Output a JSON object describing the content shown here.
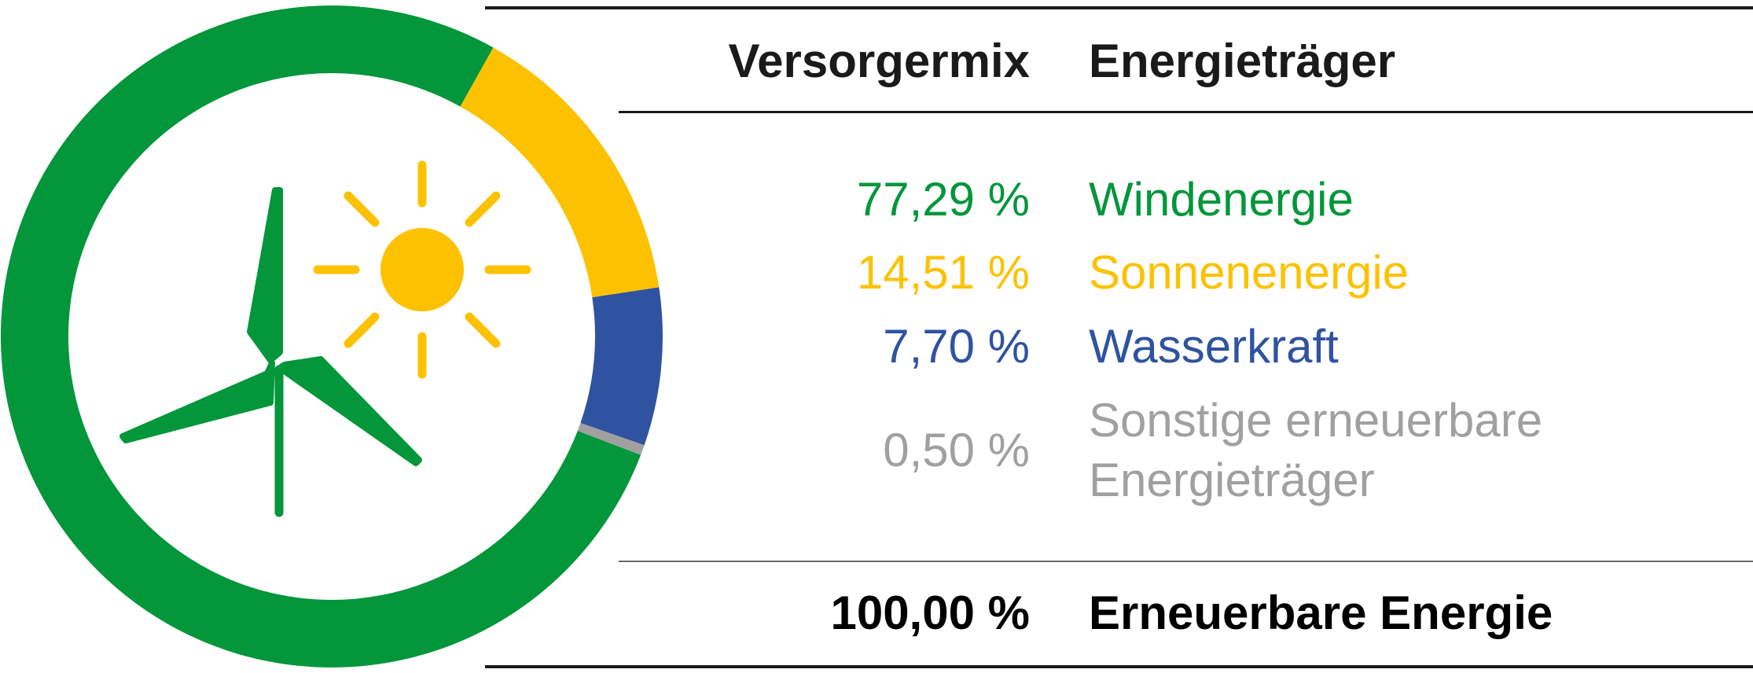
{
  "table": {
    "col_percent_header": "Versorgermix",
    "col_source_header": "Energieträger",
    "total_percent": "100,00 %",
    "total_label": "Erneuerbare Energie"
  },
  "chart_data": {
    "type": "pie",
    "variant": "donut",
    "series": [
      {
        "name": "Windenergie",
        "value": 77.29,
        "display": "77,29 %",
        "color": "#03963b"
      },
      {
        "name": "Sonnenenergie",
        "value": 14.51,
        "display": "14,51 %",
        "color": "#fcc200"
      },
      {
        "name": "Wasserkraft",
        "value": 7.7,
        "display": "7,70 %",
        "color": "#2f53a0"
      },
      {
        "name": "Sonstige erneuerbare\nEnergieträger",
        "value": 0.5,
        "display": "0,50 %",
        "color": "#a0a0a0"
      }
    ],
    "center_icons": [
      "wind-turbine-icon",
      "sun-icon"
    ]
  }
}
